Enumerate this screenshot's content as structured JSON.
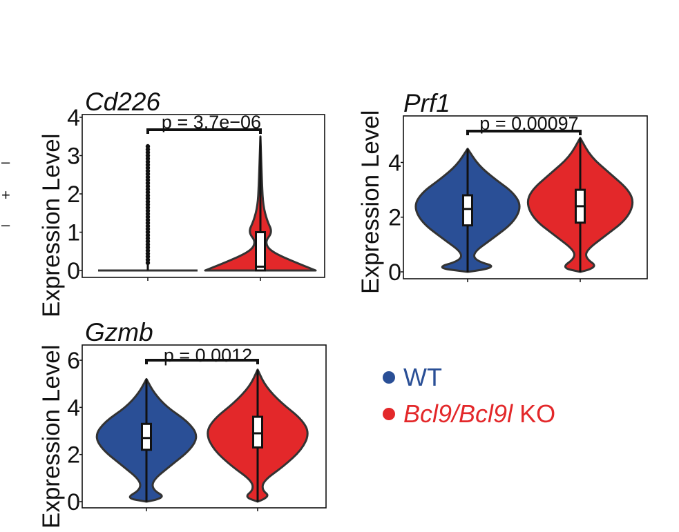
{
  "legend": {
    "entries": [
      {
        "label": "WT",
        "italic": false,
        "color": "#2a4f96"
      },
      {
        "label_italic": "Bcl9/Bcl9l",
        "label_rest": " KO",
        "color": "#e3282a"
      }
    ]
  },
  "colors": {
    "wt": "#2a4f96",
    "ko": "#e3282a",
    "outline": "#333333"
  },
  "edge_glyphs": [
    "–",
    "+",
    "–"
  ],
  "chart_data": [
    {
      "type": "violin",
      "title": "Cd226",
      "ylabel": "Expression Level",
      "ylim": [
        0,
        4
      ],
      "yticks": [
        0,
        1,
        2,
        3,
        4
      ],
      "p_label": "p = 3.7e−06",
      "groups": [
        "WT",
        "Bcl9/Bcl9l KO"
      ],
      "series": [
        {
          "name": "WT",
          "max": 3.3,
          "box": [
            0,
            0,
            0
          ],
          "profile": [
            [
              0,
              1
            ],
            [
              0.05,
              0.0
            ]
          ],
          "outliers": "0.2-3.3"
        },
        {
          "name": "Bcl9/Bcl9l KO",
          "max": 3.5,
          "box": [
            0,
            0.1,
            1.0
          ],
          "profile": [
            [
              0,
              1.0
            ],
            [
              0.2,
              0.65
            ],
            [
              0.5,
              0.18
            ],
            [
              0.75,
              0.08
            ],
            [
              1.0,
              0.22
            ],
            [
              1.3,
              0.12
            ],
            [
              1.7,
              0.05
            ],
            [
              2.2,
              0.03
            ],
            [
              3.5,
              0
            ]
          ]
        }
      ]
    },
    {
      "type": "violin",
      "title": "Prf1",
      "ylabel": "Expression Level",
      "ylim": [
        0,
        5.5
      ],
      "yticks": [
        0,
        2,
        4
      ],
      "p_label": "p = 0.00097",
      "groups": [
        "WT",
        "Bcl9/Bcl9l KO"
      ],
      "series": [
        {
          "name": "WT",
          "max": 4.5,
          "box": [
            1.7,
            2.3,
            2.8
          ],
          "profile": [
            [
              0,
              0.0
            ],
            [
              0.15,
              0.6
            ],
            [
              0.4,
              0.15
            ],
            [
              0.7,
              0.1
            ],
            [
              1.2,
              0.45
            ],
            [
              1.8,
              0.85
            ],
            [
              2.4,
              1.0
            ],
            [
              2.9,
              0.85
            ],
            [
              3.4,
              0.5
            ],
            [
              3.9,
              0.2
            ],
            [
              4.5,
              0
            ]
          ]
        },
        {
          "name": "Bcl9/Bcl9l KO",
          "max": 4.9,
          "box": [
            1.8,
            2.4,
            3.0
          ],
          "profile": [
            [
              0,
              0.0
            ],
            [
              0.15,
              0.35
            ],
            [
              0.5,
              0.1
            ],
            [
              0.8,
              0.12
            ],
            [
              1.3,
              0.45
            ],
            [
              1.9,
              0.85
            ],
            [
              2.5,
              1.0
            ],
            [
              3.0,
              0.9
            ],
            [
              3.6,
              0.55
            ],
            [
              4.2,
              0.2
            ],
            [
              4.9,
              0
            ]
          ]
        }
      ]
    },
    {
      "type": "violin",
      "title": "Gzmb",
      "ylabel": "Expression Level",
      "ylim": [
        0,
        6.5
      ],
      "yticks": [
        0,
        2,
        4,
        6
      ],
      "p_label": "p = 0.0012",
      "groups": [
        "WT",
        "Bcl9/Bcl9l KO"
      ],
      "series": [
        {
          "name": "WT",
          "max": 5.2,
          "box": [
            2.2,
            2.7,
            3.3
          ],
          "profile": [
            [
              0,
              0.0
            ],
            [
              0.15,
              0.4
            ],
            [
              0.5,
              0.12
            ],
            [
              0.9,
              0.12
            ],
            [
              1.5,
              0.45
            ],
            [
              2.2,
              0.85
            ],
            [
              2.8,
              1.0
            ],
            [
              3.4,
              0.8
            ],
            [
              4.0,
              0.4
            ],
            [
              4.6,
              0.15
            ],
            [
              5.2,
              0
            ]
          ]
        },
        {
          "name": "Bcl9/Bcl9l KO",
          "max": 5.6,
          "box": [
            2.3,
            2.9,
            3.6
          ],
          "profile": [
            [
              0,
              0.0
            ],
            [
              0.2,
              0.25
            ],
            [
              0.5,
              0.08
            ],
            [
              0.9,
              0.12
            ],
            [
              1.5,
              0.5
            ],
            [
              2.2,
              0.85
            ],
            [
              2.9,
              1.0
            ],
            [
              3.5,
              0.85
            ],
            [
              4.2,
              0.45
            ],
            [
              4.9,
              0.15
            ],
            [
              5.6,
              0
            ]
          ]
        }
      ]
    }
  ]
}
